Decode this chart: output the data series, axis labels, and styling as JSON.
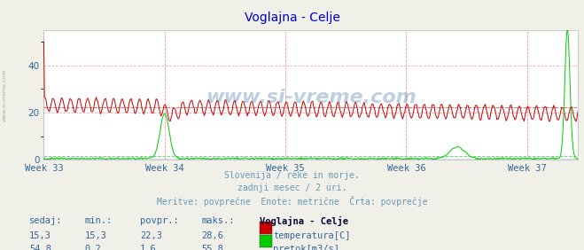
{
  "title": "Voglajna - Celje",
  "title_color": "#0000cc",
  "bg_color": "#f0f0e8",
  "plot_bg_color": "#ffffff",
  "grid_color": "#ffaaaa",
  "x_ticks_labels": [
    "Week 33",
    "Week 34",
    "Week 35",
    "Week 36",
    "Week 37"
  ],
  "x_ticks_pos": [
    0,
    168,
    336,
    504,
    672
  ],
  "ylim": [
    0,
    55
  ],
  "y_ticks": [
    0,
    20,
    40
  ],
  "n_points": 744,
  "temp_color": "#cc0000",
  "flow_color": "#00cc00",
  "height_color": "#0000cc",
  "avg_temp": 22.3,
  "avg_flow": 1.6,
  "text_color": "#6699bb",
  "label_color": "#336699",
  "subtitle_lines": [
    "Slovenija / reke in morje.",
    "zadnji mesec / 2 uri.",
    "Meritve: povprečne  Enote: metrične  Črta: povprečje"
  ],
  "watermark": "www.si-vreme.com",
  "table_headers": [
    "sedaj:",
    "min.:",
    "povpr.:",
    "maks.:",
    "Voglajna - Celje"
  ],
  "table_row1": [
    "15,3",
    "15,3",
    "22,3",
    "28,6"
  ],
  "table_row2": [
    "54,8",
    "0,2",
    "1,6",
    "55,8"
  ],
  "table_label1": "temperatura[C]",
  "table_label2": "pretok[m3/s]"
}
